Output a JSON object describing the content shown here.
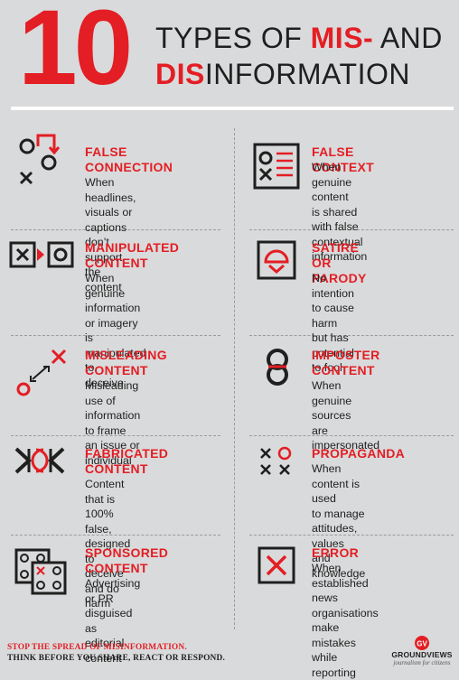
{
  "header": {
    "number": "10",
    "line1_prefix": "TYPES OF ",
    "line1_red": "MIS-",
    "line1_suffix": " AND",
    "line2_red": "DIS",
    "line2_suffix": "INFORMATION"
  },
  "items": [
    {
      "title": [
        "FALSE",
        "CONNECTION"
      ],
      "desc": [
        "When headlines,",
        "visuals or captions don’t",
        "support the content"
      ],
      "icon": "false-connection-icon"
    },
    {
      "title": [
        "FALSE CONTEXT"
      ],
      "desc": [
        "When genuine content",
        "is shared with false",
        "contextual information"
      ],
      "icon": "false-context-icon"
    },
    {
      "title": [
        "MANIPULATED",
        "CONTENT"
      ],
      "desc": [
        "When genuine",
        "information or imagery",
        "is manipulated to",
        "deceive"
      ],
      "icon": "manipulated-content-icon"
    },
    {
      "title": [
        "SATIRE OR",
        "PARODY"
      ],
      "desc": [
        "No intention to cause",
        "harm but has potential",
        "to fool"
      ],
      "icon": "satire-parody-icon"
    },
    {
      "title": [
        "MISLEADING",
        "CONTENT"
      ],
      "desc": [
        "Misleading use of",
        "information to frame",
        "an issue or individual"
      ],
      "icon": "misleading-content-icon"
    },
    {
      "title": [
        "IMPOSTER",
        "CONTENT"
      ],
      "desc": [
        "When genuine sources",
        "are impersonated"
      ],
      "icon": "imposter-content-icon"
    },
    {
      "title": [
        "FABRICATED",
        "CONTENT"
      ],
      "desc": [
        "Content that is 100%",
        "false, designed to",
        "deceive and do harm"
      ],
      "icon": "fabricated-content-icon"
    },
    {
      "title": [
        "PROPAGANDA"
      ],
      "desc": [
        "When content is used",
        "to manage attitudes,",
        "values and knowledge"
      ],
      "icon": "propaganda-icon"
    },
    {
      "title": [
        "SPONSORED",
        "CONTENT"
      ],
      "desc": [
        "Advertising or PR",
        "disguised as",
        "editorial content"
      ],
      "icon": "sponsored-content-icon"
    },
    {
      "title": [
        "ERROR"
      ],
      "desc": [
        "When established",
        "news organisations",
        "make mistakes while",
        "reporting"
      ],
      "icon": "error-icon"
    }
  ],
  "footer": {
    "line1": "STOP THE SPREAD OF MISINFORMATION.",
    "line2": "THINK BEFORE YOU SHARE, REACT OR RESPOND.",
    "logo_mark": "GV",
    "logo_name": "GROUNDVIEWS",
    "logo_tagline": "journalism for citizens"
  },
  "colors": {
    "accent": "#e31e24",
    "text": "#1f1f1f",
    "background": "#d9dadb"
  }
}
